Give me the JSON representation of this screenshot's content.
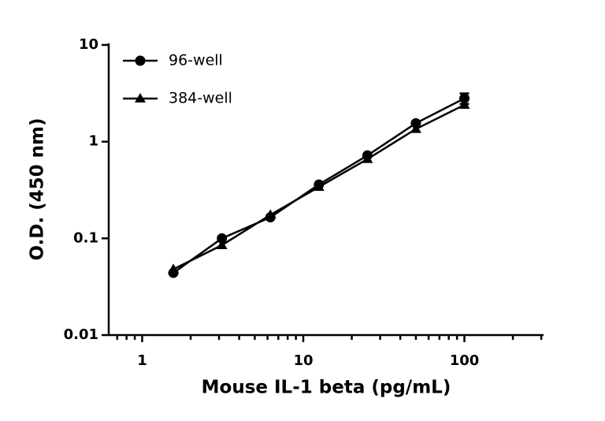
{
  "chart_data": {
    "type": "line",
    "x_label": "Mouse IL-1 beta (pg/mL)",
    "y_label": "O.D. (450 nm)",
    "x": [
      1.5625,
      3.125,
      6.25,
      12.5,
      25,
      50,
      100
    ],
    "series": [
      {
        "name": "96-well",
        "color": "#000000",
        "marker": "circle",
        "values": [
          0.044,
          0.1,
          0.165,
          0.36,
          0.72,
          1.55,
          2.8
        ],
        "errors": [
          null,
          null,
          null,
          null,
          null,
          null,
          0.35
        ]
      },
      {
        "name": "384-well",
        "color": "#000000",
        "marker": "triangle",
        "values": [
          0.048,
          0.085,
          0.175,
          0.34,
          0.66,
          1.35,
          2.4
        ]
      }
    ],
    "xscale": "log",
    "yscale": "log",
    "xlim": [
      0.62,
      310
    ],
    "ylim": [
      0.01,
      10
    ],
    "xticks": [
      1,
      10,
      100
    ],
    "yticks": [
      0.01,
      0.1,
      1,
      10
    ],
    "xminorticks": [
      0.7,
      0.8,
      0.9,
      2,
      3,
      4,
      5,
      6,
      7,
      8,
      9,
      20,
      30,
      40,
      50,
      60,
      70,
      80,
      90,
      200,
      300
    ],
    "legend": "upper left"
  }
}
